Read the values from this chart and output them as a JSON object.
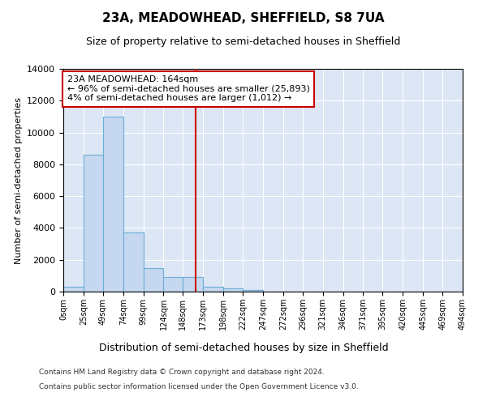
{
  "title": "23A, MEADOWHEAD, SHEFFIELD, S8 7UA",
  "subtitle": "Size of property relative to semi-detached houses in Sheffield",
  "xlabel": "Distribution of semi-detached houses by size in Sheffield",
  "ylabel": "Number of semi-detached properties",
  "annotation_line1": "23A MEADOWHEAD: 164sqm",
  "annotation_line2": "← 96% of semi-detached houses are smaller (25,893)",
  "annotation_line3": "4% of semi-detached houses are larger (1,012) →",
  "bar_edges": [
    0,
    25,
    49,
    74,
    99,
    124,
    148,
    173,
    198,
    222,
    247,
    272,
    296,
    321,
    346,
    371,
    395,
    420,
    445,
    469,
    494
  ],
  "bar_heights": [
    300,
    8600,
    11000,
    3700,
    1500,
    900,
    900,
    300,
    200,
    100,
    0,
    0,
    0,
    0,
    0,
    0,
    0,
    0,
    0,
    0
  ],
  "tick_labels": [
    "0sqm",
    "25sqm",
    "49sqm",
    "74sqm",
    "99sqm",
    "124sqm",
    "148sqm",
    "173sqm",
    "198sqm",
    "222sqm",
    "247sqm",
    "272sqm",
    "296sqm",
    "321sqm",
    "346sqm",
    "371sqm",
    "395sqm",
    "420sqm",
    "445sqm",
    "469sqm",
    "494sqm"
  ],
  "bar_color": "#c5d8f0",
  "bar_edge_color": "#6baed6",
  "vline_color": "#cc0000",
  "vline_x": 164,
  "ylim": [
    0,
    14000
  ],
  "yticks": [
    0,
    2000,
    4000,
    6000,
    8000,
    10000,
    12000,
    14000
  ],
  "background_color": "#dce6f5",
  "grid_color": "#ffffff",
  "annotation_box_color": "#ffffff",
  "annotation_box_edge": "#cc0000",
  "footer_line1": "Contains HM Land Registry data © Crown copyright and database right 2024.",
  "footer_line2": "Contains public sector information licensed under the Open Government Licence v3.0."
}
